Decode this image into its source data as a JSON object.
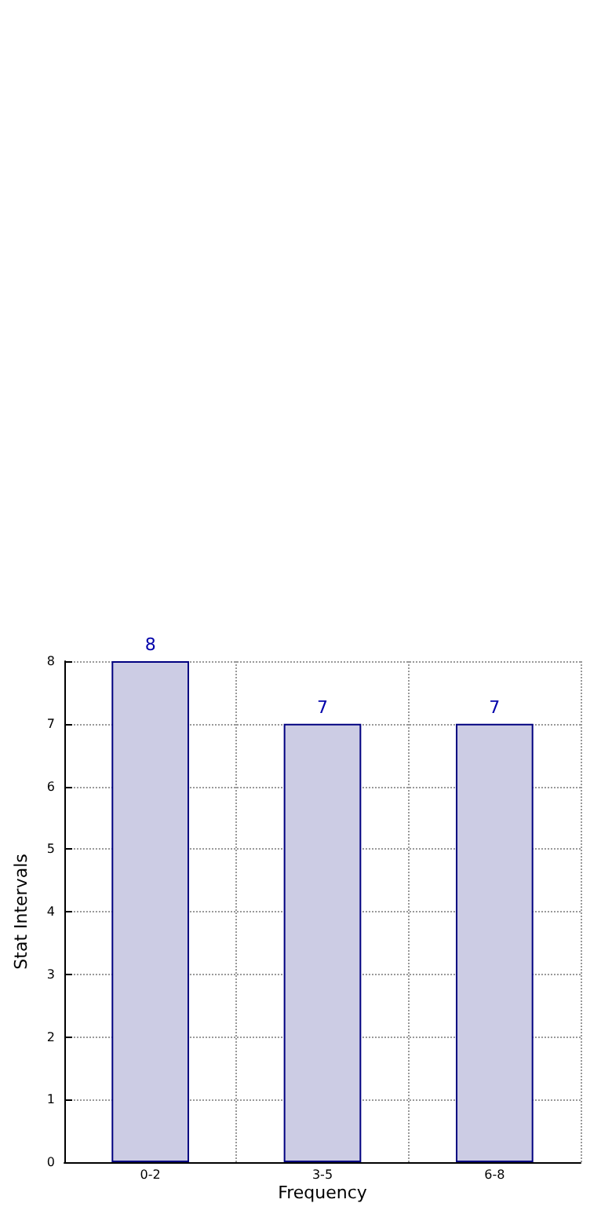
{
  "chart_data": {
    "type": "bar",
    "xlabel": "Frequency",
    "ylabel": "Stat Intervals",
    "categories": [
      "0-2",
      "3-5",
      "6-8"
    ],
    "values": [
      8,
      7,
      7
    ],
    "color": "#ccccE4",
    "ylim": [
      0,
      8
    ],
    "yticks": [
      0,
      1,
      2,
      3,
      4,
      5,
      6,
      7,
      8
    ],
    "grid": true,
    "data_labels": true
  }
}
